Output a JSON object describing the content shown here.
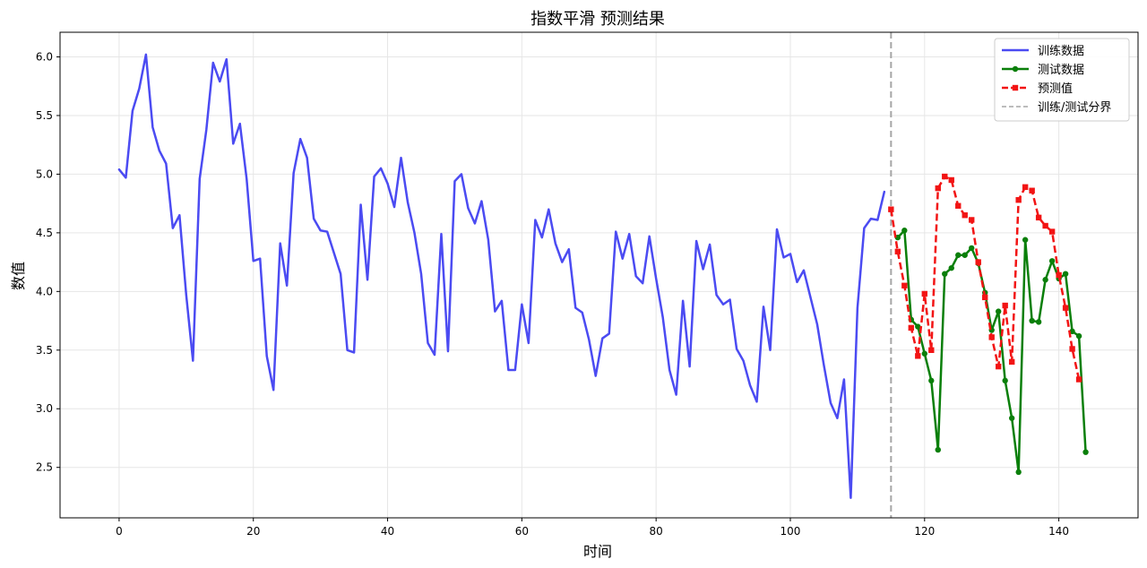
{
  "chart_data": {
    "type": "line",
    "title": "指数平滑 预测结果",
    "xlabel": "时间",
    "ylabel": "数值",
    "xlim": [
      -8.8,
      151.8
    ],
    "ylim": [
      2.07,
      6.21
    ],
    "x_ticks": [
      0,
      20,
      40,
      60,
      80,
      100,
      120,
      140
    ],
    "y_ticks": [
      2.5,
      3.0,
      3.5,
      4.0,
      4.5,
      5.0,
      5.5,
      6.0
    ],
    "x_tick_labels": [
      "0",
      "20",
      "40",
      "60",
      "80",
      "100",
      "120",
      "140"
    ],
    "y_tick_labels": [
      "2.5",
      "3.0",
      "3.5",
      "4.0",
      "4.5",
      "5.0",
      "5.5",
      "6.0"
    ],
    "grid": true,
    "legend_position": "top-right",
    "split_x": 115,
    "series": [
      {
        "name": "训练数据",
        "color": "#4b4bf2",
        "style": "solid",
        "marker": "none",
        "x_start": 0,
        "values": [
          5.04,
          4.97,
          5.54,
          5.73,
          6.02,
          5.4,
          5.2,
          5.09,
          4.54,
          4.65,
          3.97,
          3.41,
          4.96,
          5.38,
          5.95,
          5.79,
          5.98,
          5.26,
          5.43,
          4.96,
          4.26,
          4.28,
          3.45,
          3.16,
          4.41,
          4.05,
          5.01,
          5.3,
          5.14,
          4.62,
          4.52,
          4.51,
          4.33,
          4.15,
          3.5,
          3.48,
          4.74,
          4.1,
          4.98,
          5.05,
          4.92,
          4.72,
          5.14,
          4.76,
          4.5,
          4.15,
          3.56,
          3.46,
          4.49,
          3.49,
          4.94,
          5.0,
          4.71,
          4.58,
          4.77,
          4.44,
          3.83,
          3.92,
          3.33,
          3.33,
          3.89,
          3.56,
          4.61,
          4.46,
          4.7,
          4.41,
          4.25,
          4.36,
          3.86,
          3.82,
          3.59,
          3.28,
          3.6,
          3.64,
          4.51,
          4.28,
          4.49,
          4.13,
          4.07,
          4.47,
          4.11,
          3.78,
          3.33,
          3.12,
          3.92,
          3.36,
          4.43,
          4.19,
          4.4,
          3.97,
          3.89,
          3.93,
          3.51,
          3.41,
          3.2,
          3.06,
          3.87,
          3.5,
          4.53,
          4.29,
          4.32,
          4.08,
          4.18,
          3.95,
          3.72,
          3.37,
          3.05,
          2.92,
          3.25,
          2.24,
          3.86,
          4.54,
          4.62,
          4.61,
          4.85
        ]
      },
      {
        "name": "测试数据",
        "color": "#0a7f0a",
        "style": "solid",
        "marker": "circle",
        "x_start": 116,
        "values": [
          4.46,
          4.52,
          3.76,
          3.7,
          3.47,
          3.24,
          2.65,
          4.15,
          4.2,
          4.31,
          4.31,
          4.37,
          4.24,
          3.99,
          3.67,
          3.83,
          3.24,
          2.92,
          2.46,
          4.44,
          3.75,
          3.74,
          4.1,
          4.26,
          4.11,
          4.15,
          3.66,
          3.62,
          2.63
        ]
      },
      {
        "name": "预测值",
        "color": "#f21414",
        "style": "dashed",
        "marker": "square",
        "x_start": 115,
        "values": [
          4.7,
          4.34,
          4.05,
          3.69,
          3.45,
          3.98,
          3.5,
          4.88,
          4.98,
          4.95,
          4.73,
          4.65,
          4.61,
          4.25,
          3.95,
          3.61,
          3.36,
          3.88,
          3.4,
          4.78,
          4.89,
          4.86,
          4.63,
          4.56,
          4.51,
          4.14,
          3.86,
          3.51,
          3.25
        ]
      }
    ],
    "divider": {
      "name": "训练/测试分界",
      "color": "#a6a6a6",
      "style": "dashed"
    }
  }
}
